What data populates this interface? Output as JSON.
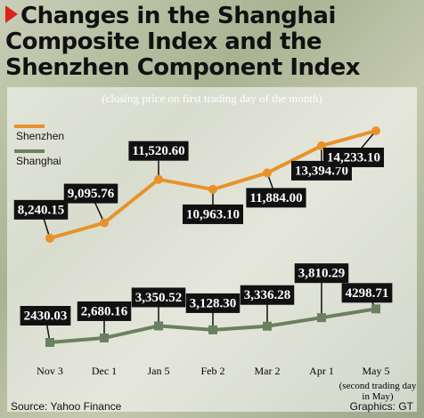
{
  "chart_data": {
    "type": "line",
    "title": [
      "Changes in the Shanghai",
      "Composite Index and the",
      "Shenzhen Component Index"
    ],
    "subtitle": "(closing price on first trading day of the month)",
    "categories": [
      "Nov 3",
      "Dec 1",
      "Jan 5",
      "Feb 2",
      "Mar 2",
      "Apr 1",
      "May 5"
    ],
    "series": [
      {
        "name": "Shenzhen",
        "color": "#e8922a",
        "marker": "circle",
        "values": [
          8240.15,
          9095.76,
          11520.6,
          10963.1,
          11884.0,
          13394.7,
          14233.1
        ],
        "value_labels": [
          "8,240.15",
          "9,095.76",
          "11,520.60",
          "10,963.10",
          "11,884.00",
          "13,394.70",
          "14,233.10"
        ]
      },
      {
        "name": "Shanghai",
        "color": "#6b8060",
        "marker": "square",
        "values": [
          2430.03,
          2680.16,
          3350.52,
          3128.3,
          3336.28,
          3810.29,
          4298.71
        ],
        "value_labels": [
          "2430.03",
          "2,680.16",
          "3,350.52",
          "3,128.30",
          "3,336.28",
          "3,810.29",
          "4298.71"
        ]
      }
    ],
    "annotation": "(second trading day in May)",
    "source": "Source: Yahoo Finance",
    "credit": "Graphics: GT"
  }
}
